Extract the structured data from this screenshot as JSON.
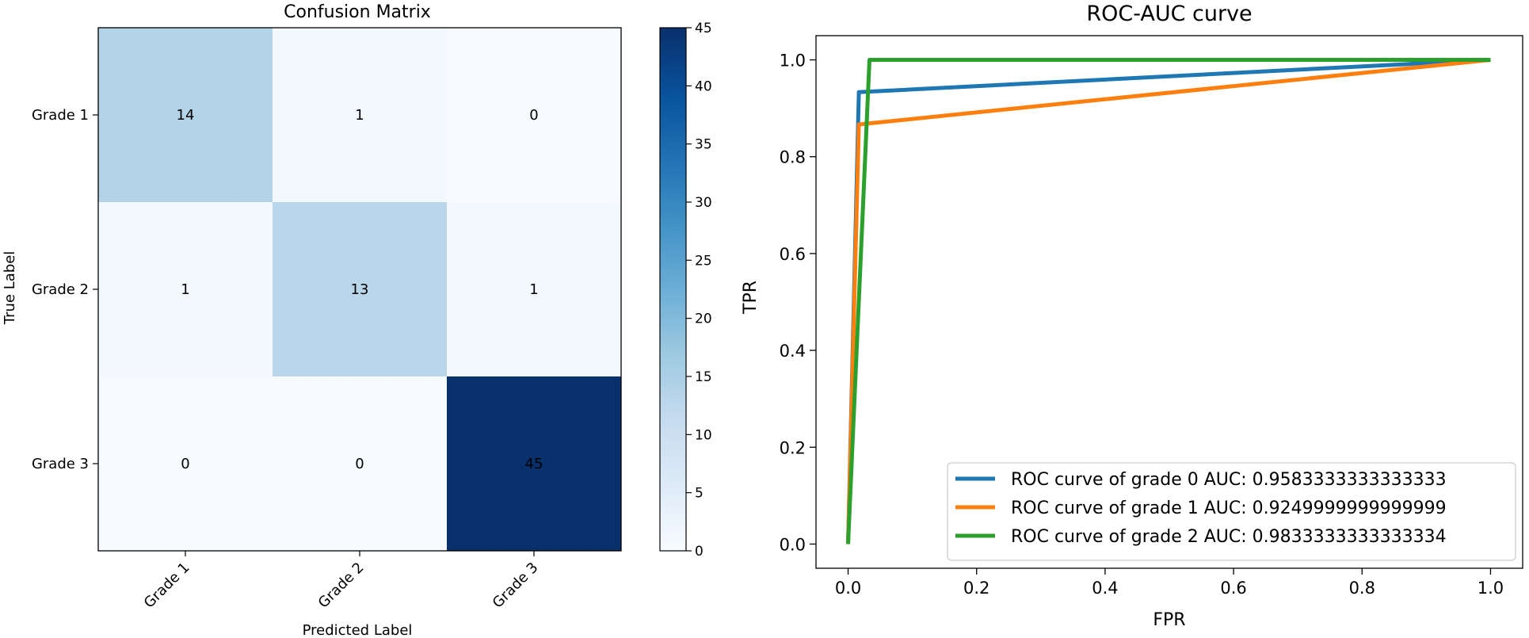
{
  "chart_data": [
    {
      "type": "heatmap",
      "title": "Confusion Matrix",
      "xlabel": "Predicted Label",
      "ylabel": "True Label",
      "x_categories": [
        "Grade 1",
        "Grade 2",
        "Grade 3"
      ],
      "y_categories": [
        "Grade 1",
        "Grade 2",
        "Grade 3"
      ],
      "matrix": [
        [
          14,
          1,
          0
        ],
        [
          1,
          13,
          1
        ],
        [
          0,
          0,
          45
        ]
      ],
      "colormap": "Blues",
      "colorbar": {
        "min": 0,
        "max": 45,
        "ticks": [
          0,
          5,
          10,
          15,
          20,
          25,
          30,
          35,
          40,
          45
        ]
      }
    },
    {
      "type": "line",
      "title": "ROC-AUC curve",
      "xlabel": "FPR",
      "ylabel": "TPR",
      "xlim": [
        -0.05,
        1.05
      ],
      "ylim": [
        -0.05,
        1.05
      ],
      "xticks": [
        0.0,
        0.2,
        0.4,
        0.6,
        0.8,
        1.0
      ],
      "yticks": [
        0.0,
        0.2,
        0.4,
        0.6,
        0.8,
        1.0
      ],
      "tick_labels": [
        "0.0",
        "0.2",
        "0.4",
        "0.6",
        "0.8",
        "1.0"
      ],
      "legend_position": "lower-right",
      "series": [
        {
          "name": "ROC curve of grade 0 AUC: 0.9583333333333333",
          "color": "#1f77b4",
          "x": [
            0.0,
            0.0167,
            1.0
          ],
          "y": [
            0.0,
            0.9333,
            1.0
          ]
        },
        {
          "name": "ROC curve of grade 1 AUC: 0.9249999999999999",
          "color": "#ff7f0e",
          "x": [
            0.0,
            0.0167,
            1.0
          ],
          "y": [
            0.0,
            0.8667,
            1.0
          ]
        },
        {
          "name": "ROC curve of grade 2 AUC: 0.9833333333333334",
          "color": "#2ca02c",
          "x": [
            0.0,
            0.0333,
            1.0
          ],
          "y": [
            0.0,
            1.0,
            1.0
          ]
        }
      ]
    }
  ]
}
